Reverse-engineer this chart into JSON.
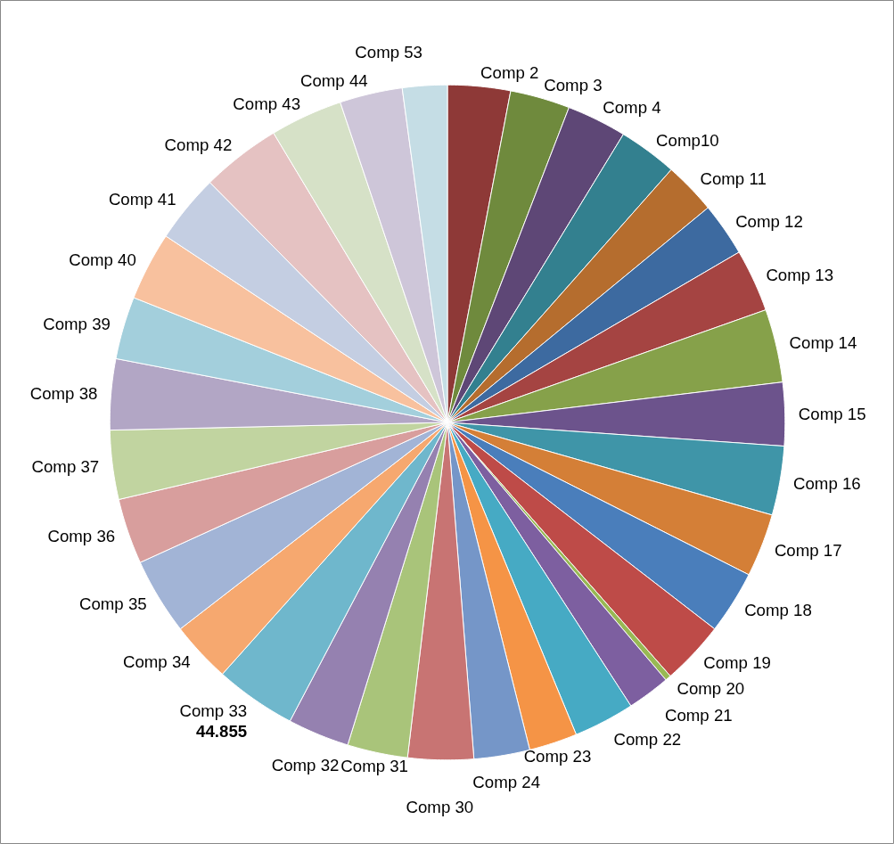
{
  "chart_data": {
    "type": "pie",
    "categories": [
      "Comp 2",
      "Comp 3",
      "Comp 4",
      "Comp10",
      "Comp 11",
      "Comp 12",
      "Comp 13",
      "Comp 14",
      "Comp 15",
      "Comp 16",
      "Comp 17",
      "Comp 18",
      "Comp 19",
      "Comp 20",
      "Comp 21",
      "Comp 22",
      "Comp 23",
      "Comp 24",
      "Comp 30",
      "Comp 31",
      "Comp 32",
      "Comp 33",
      "Comp 34",
      "Comp 35",
      "Comp 36",
      "Comp 37",
      "Comp 38",
      "Comp 39",
      "Comp 40",
      "Comp 41",
      "Comp 42",
      "Comp 43",
      "Comp 44",
      "Comp 53"
    ],
    "values": [
      34.6,
      33.0,
      33.0,
      32.4,
      28.8,
      29.5,
      34.6,
      40.4,
      34.9,
      38.1,
      34.9,
      34.9,
      35.2,
      3.2,
      23.7,
      33.6,
      26.6,
      30.8,
      36.2,
      33.3,
      34.0,
      44.855,
      33.6,
      42.3,
      36.2,
      38.1,
      39.1,
      34.6,
      37.8,
      37.8,
      43.9,
      40.0,
      34.6,
      24.7
    ],
    "value_labels": [
      null,
      null,
      null,
      null,
      null,
      null,
      null,
      null,
      null,
      null,
      null,
      null,
      null,
      null,
      null,
      null,
      null,
      null,
      null,
      null,
      null,
      "44.855",
      null,
      null,
      null,
      null,
      null,
      null,
      null,
      null,
      null,
      null,
      null,
      null
    ],
    "colors": [
      "#8e3937",
      "#6f8a3d",
      "#5e4776",
      "#33808f",
      "#b56d2e",
      "#3d6aa0",
      "#a54442",
      "#86a14a",
      "#6c538c",
      "#3f95a8",
      "#d47f37",
      "#4a7ebb",
      "#be4b48",
      "#98b954",
      "#7d5fa0",
      "#46aac4",
      "#f59446",
      "#7596c8",
      "#c87473",
      "#a9c47a",
      "#9581b0",
      "#6fb7cc",
      "#f6a86f",
      "#a2b4d6",
      "#d89e9d",
      "#c1d4a0",
      "#b2a6c5",
      "#a3cfdc",
      "#f8c19e",
      "#c4cee2",
      "#e5c2c2",
      "#d6e1c7",
      "#cec6d9",
      "#c5dde5"
    ]
  }
}
